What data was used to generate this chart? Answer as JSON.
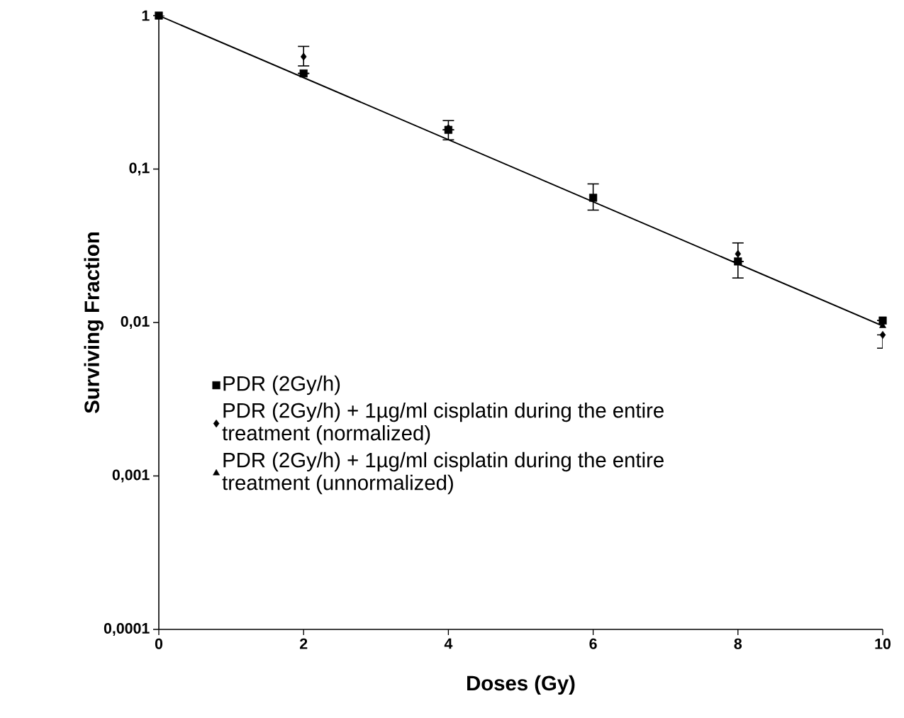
{
  "chart_data": {
    "type": "scatter",
    "xlabel": "Doses (Gy)",
    "ylabel": "Surviving Fraction",
    "log": "y",
    "x": [
      0,
      2,
      4,
      6,
      8,
      10
    ],
    "xlim": [
      0,
      10
    ],
    "xticks": [
      0,
      2,
      4,
      6,
      8,
      10
    ],
    "ylim": [
      0.0001,
      1
    ],
    "yticks": [
      {
        "value": 0.0001,
        "label": "0,0001"
      },
      {
        "value": 0.001,
        "label": "0,001"
      },
      {
        "value": 0.01,
        "label": "0,01"
      },
      {
        "value": 0.1,
        "label": "0,1"
      },
      {
        "value": 1,
        "label": "1"
      }
    ],
    "legend": "left",
    "grid": false,
    "series": [
      {
        "name": "PDR (2Gy/h)",
        "color": "#000000",
        "marker": "square",
        "values": [
          1,
          0.42,
          0.18,
          0.065,
          0.025,
          0.0103
        ],
        "errors": [
          null,
          null,
          null,
          [
            0.054,
            0.08
          ],
          null,
          null
        ]
      },
      {
        "name": "PDR (2Gy/h) + 1µg/ml cisplatin during the entire treatment (normalized)",
        "color": "#000000",
        "marker": "diamond",
        "values": [
          null,
          0.54,
          0.185,
          null,
          0.028,
          0.0083
        ],
        "errors": [
          null,
          [
            0.47,
            0.63
          ],
          [
            0.155,
            0.207
          ],
          null,
          [
            0.0195,
            0.033
          ],
          [
            0.0068,
            0.0083
          ]
        ]
      },
      {
        "name": "PDR (2Gy/h) + 1µg/ml cisplatin during the entire treatment (unnormalized)",
        "color": "#000000",
        "marker": "triangle",
        "values": [
          null,
          null,
          null,
          null,
          null,
          0.0095
        ]
      },
      {
        "type": "line",
        "color": "#000000",
        "marker": "none",
        "line_style": "solid",
        "x": [
          0,
          10
        ],
        "values": [
          1,
          0.0095
        ]
      }
    ]
  }
}
